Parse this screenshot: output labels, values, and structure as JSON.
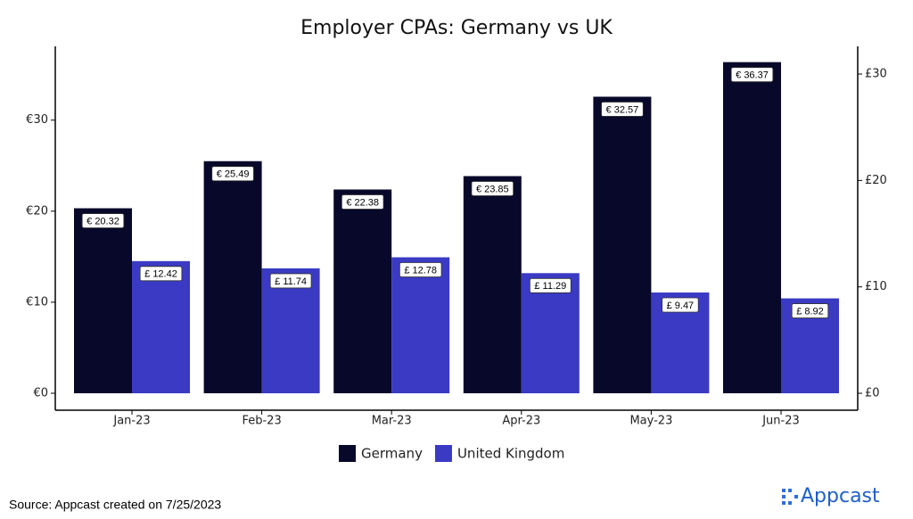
{
  "chart_data": {
    "type": "bar",
    "title": "Employer CPAs: Germany vs UK",
    "categories": [
      "Jan-23",
      "Feb-23",
      "Mar-23",
      "Apr-23",
      "May-23",
      "Jun-23"
    ],
    "series": [
      {
        "name": "Germany",
        "color": "#08082a",
        "values": [
          20.32,
          25.49,
          22.38,
          23.85,
          32.57,
          36.37
        ],
        "value_labels": [
          "€ 20.32",
          "€ 25.49",
          "€ 22.38",
          "€ 23.85",
          "€ 32.57",
          "€ 36.37"
        ]
      },
      {
        "name": "United Kingdom",
        "color": "#3a3ac4",
        "axis": "y2",
        "values": [
          12.42,
          11.74,
          12.78,
          11.29,
          9.47,
          8.92
        ],
        "value_labels": [
          "£ 12.42",
          "£ 11.74",
          "£ 12.78",
          "£ 11.29",
          "£ 9.47",
          "£ 8.92"
        ]
      }
    ],
    "ylim": [
      -1.86,
      38.1
    ],
    "yticks": [
      {
        "value": 0,
        "label": "€0"
      },
      {
        "value": 10,
        "label": "€10"
      },
      {
        "value": 20,
        "label": "€20"
      },
      {
        "value": 30,
        "label": "€30"
      }
    ],
    "y2lim": [
      -1.59,
      32.6
    ],
    "y2ticks": [
      {
        "value": 0,
        "label": "£0"
      },
      {
        "value": 10,
        "label": "£10"
      },
      {
        "value": 20,
        "label": "£20"
      },
      {
        "value": 30,
        "label": "£30"
      }
    ],
    "legend": "bottom",
    "source": "Source: Appcast created on 7/25/2023",
    "brand": "Appcast"
  }
}
